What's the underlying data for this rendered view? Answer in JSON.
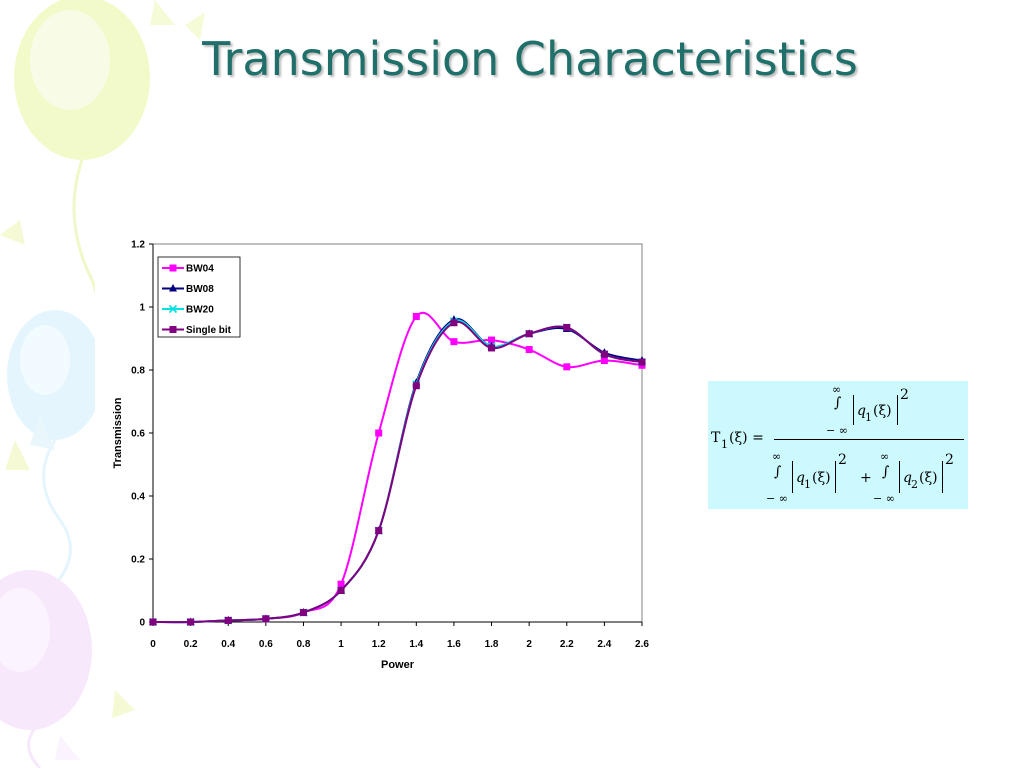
{
  "slide": {
    "title": "Transmission Characteristics"
  },
  "theme": {
    "title_color": "#1f6f6a",
    "formula_bg": "#ccf9fd"
  },
  "chart_data": {
    "type": "line",
    "xlabel": "Power",
    "ylabel": "Transmission",
    "xlim": [
      0,
      2.6
    ],
    "ylim": [
      0,
      1.2
    ],
    "x_ticks": [
      "0",
      "0.2",
      "0.4",
      "0.6",
      "0.8",
      "1",
      "1.2",
      "1.4",
      "1.6",
      "1.8",
      "2",
      "2.2",
      "2.4",
      "2.6"
    ],
    "y_ticks": [
      "0",
      "0.2",
      "0.4",
      "0.6",
      "0.8",
      "1",
      "1.2"
    ],
    "legend_position": "top-left",
    "series": [
      {
        "name": "BW04",
        "color": "#ff00ff",
        "marker": "square",
        "x": [
          0,
          0.2,
          0.4,
          0.6,
          0.8,
          1.0,
          1.2,
          1.4,
          1.6,
          1.8,
          2.0,
          2.2,
          2.4,
          2.6
        ],
        "y": [
          0.0,
          0.0,
          0.005,
          0.01,
          0.03,
          0.12,
          0.6,
          0.97,
          0.89,
          0.895,
          0.865,
          0.81,
          0.83,
          0.815
        ]
      },
      {
        "name": "BW08",
        "color": "#000080",
        "marker": "triangle",
        "x": [
          0,
          0.2,
          0.4,
          0.6,
          0.8,
          1.0,
          1.2,
          1.4,
          1.6,
          1.8,
          2.0,
          2.2,
          2.4,
          2.6
        ],
        "y": [
          0.0,
          0.0,
          0.005,
          0.01,
          0.03,
          0.1,
          0.29,
          0.76,
          0.96,
          0.875,
          0.915,
          0.93,
          0.855,
          0.83
        ]
      },
      {
        "name": "BW20",
        "color": "#00e0e0",
        "marker": "x",
        "x": [
          0,
          0.2,
          0.4,
          0.6,
          0.8,
          1.0,
          1.2,
          1.4,
          1.6,
          1.8,
          2.0,
          2.2,
          2.4,
          2.6
        ],
        "y": [
          0.0,
          0.0,
          0.005,
          0.01,
          0.03,
          0.1,
          0.29,
          0.755,
          0.955,
          0.875,
          0.915,
          0.935,
          0.85,
          0.825
        ]
      },
      {
        "name": "Single bit",
        "color": "#800080",
        "marker": "square",
        "x": [
          0,
          0.2,
          0.4,
          0.6,
          0.8,
          1.0,
          1.2,
          1.4,
          1.6,
          1.8,
          2.0,
          2.2,
          2.4,
          2.6
        ],
        "y": [
          0.0,
          0.0,
          0.005,
          0.01,
          0.03,
          0.1,
          0.29,
          0.75,
          0.95,
          0.87,
          0.915,
          0.935,
          0.85,
          0.825
        ]
      }
    ]
  },
  "formula": {
    "lhs": "T",
    "lhs_sub": "1",
    "lhs_arg": "(ξ) =",
    "inf": "∞",
    "neg_inf": "− ∞",
    "integral": "∫",
    "q": "q",
    "sub1": "1",
    "sub2": "2",
    "arg": "(ξ)",
    "power": "2",
    "plus": "+"
  }
}
